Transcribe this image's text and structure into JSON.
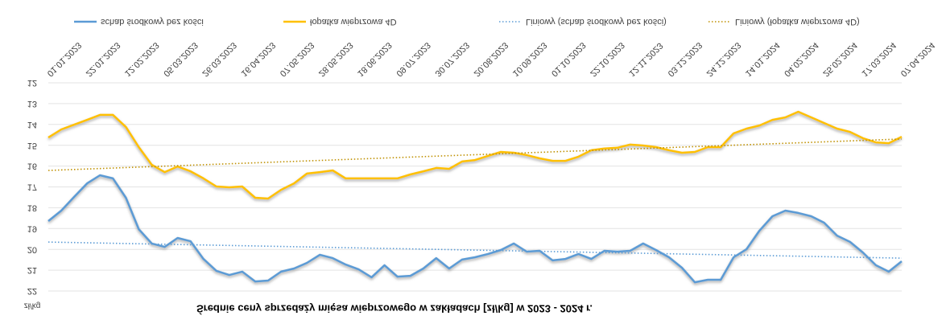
{
  "chart_data": {
    "type": "line",
    "title": "Średnie ceny sprzedaży mięsa wieprzowego w zakładach [zł/kg] w 2023 - 2024 r.",
    "y_label": "zł/kg",
    "flipped_vertically": true,
    "grid": true,
    "legend": "top",
    "categories": [
      "01.01.2023",
      null,
      null,
      "22.01.2023",
      null,
      null,
      "12.02.2023",
      null,
      null,
      "05.03.2023",
      null,
      null,
      "26.03.2023",
      null,
      null,
      "16.04.2023",
      null,
      null,
      "07.05.2023",
      null,
      null,
      "28.05.2023",
      null,
      null,
      "18.06.2023",
      null,
      null,
      "09.07.2023",
      null,
      null,
      "30.07.2023",
      null,
      null,
      "20.08.2023",
      null,
      null,
      "10.09.2023",
      null,
      null,
      "01.10.2023",
      null,
      null,
      "22.10.2023",
      null,
      null,
      "12.11.2023",
      null,
      null,
      "03.12.2023",
      null,
      null,
      "24.12.2023",
      null,
      null,
      "14.01.2024",
      null,
      null,
      "04.02.2024",
      null,
      null,
      "25.02.2024",
      null,
      null,
      "17.03.2024",
      null,
      null,
      "07.04.2024"
    ],
    "ylim": [
      12,
      22
    ],
    "yticks": [
      12,
      13,
      14,
      15,
      16,
      17,
      18,
      19,
      20,
      21,
      22
    ],
    "series": [
      {
        "name": "schab środkowy bez kości",
        "color": "#5b9bd5",
        "style": "solid",
        "values": [
          18.64,
          18.14,
          17.48,
          16.83,
          16.44,
          16.59,
          17.52,
          19.03,
          19.72,
          19.88,
          19.45,
          19.61,
          20.46,
          21.03,
          21.23,
          21.07,
          21.54,
          21.5,
          21.07,
          20.92,
          20.65,
          20.26,
          20.42,
          20.73,
          20.96,
          21.34,
          20.76,
          21.31,
          21.27,
          20.92,
          20.42,
          20.92,
          20.49,
          20.38,
          20.22,
          20.03,
          19.72,
          20.11,
          20.07,
          20.53,
          20.46,
          20.22,
          20.46,
          20.07,
          20.11,
          20.07,
          19.72,
          20.03,
          20.38,
          20.88,
          21.58,
          21.46,
          21.46,
          20.38,
          19.99,
          19.1,
          18.41,
          18.14,
          18.25,
          18.41,
          18.72,
          19.34,
          19.64,
          20.15,
          20.76,
          21.07,
          20.57
        ]
      },
      {
        "name": "łopatka wieprzowa 4D",
        "color": "#ffc000",
        "style": "solid",
        "values": [
          14.63,
          14.24,
          14.01,
          13.78,
          13.54,
          13.54,
          14.12,
          15.09,
          15.94,
          16.29,
          16.02,
          16.25,
          16.59,
          16.98,
          17.02,
          16.98,
          17.52,
          17.56,
          17.14,
          16.83,
          16.36,
          16.29,
          16.21,
          16.59,
          16.59,
          16.59,
          16.59,
          16.59,
          16.4,
          16.25,
          16.09,
          16.13,
          15.78,
          15.71,
          15.51,
          15.32,
          15.36,
          15.47,
          15.63,
          15.75,
          15.75,
          15.55,
          15.24,
          15.16,
          15.12,
          14.97,
          15.01,
          15.09,
          15.24,
          15.36,
          15.32,
          15.09,
          15.09,
          14.43,
          14.2,
          14.05,
          13.78,
          13.66,
          13.39,
          13.66,
          13.93,
          14.2,
          14.36,
          14.66,
          14.86,
          14.9,
          14.59
        ]
      },
      {
        "name": "Liniowy (schab środkowy bez kości)",
        "color": "#5b9bd5",
        "style": "dotted",
        "x": [
          "01.01.2023",
          "07.04.2024"
        ],
        "values": [
          19.65,
          20.42
        ]
      },
      {
        "name": "Liniowy (łopatka wieprzowa 4D)",
        "color": "#bf9000",
        "style": "dotted",
        "x": [
          "01.01.2023",
          "07.04.2024"
        ],
        "values": [
          16.21,
          14.7
        ]
      }
    ]
  }
}
